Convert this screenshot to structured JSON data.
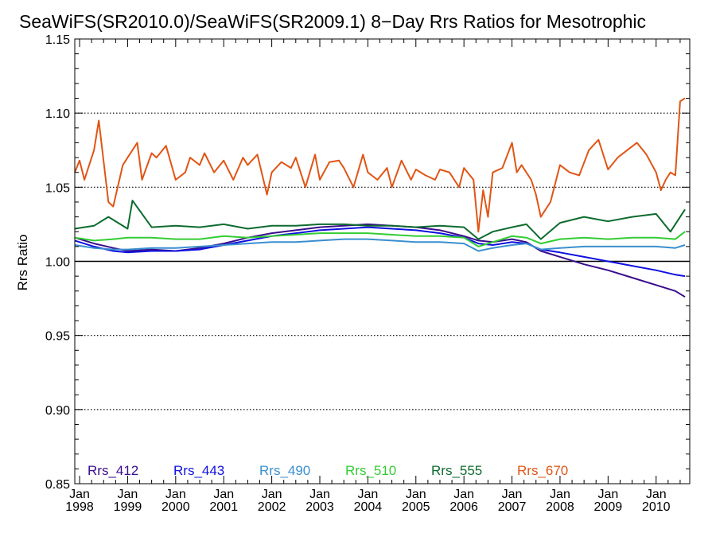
{
  "chart_data": {
    "type": "line",
    "title": "SeaWiFS(SR2010.0)/SeaWiFS(SR2009.1) 8−Day Rrs Ratios for Mesotrophic",
    "xlabel": "",
    "ylabel": "Rrs Ratio",
    "x_start": 1997.9,
    "x_end": 2010.7,
    "xlim": [
      1997.9,
      2010.7
    ],
    "ylim": [
      0.85,
      1.15
    ],
    "y_ticks": [
      "0.85",
      "0.90",
      "0.95",
      "1.00",
      "1.05",
      "1.10",
      "1.15"
    ],
    "y_tick_values": [
      0.85,
      0.9,
      0.95,
      1.0,
      1.05,
      1.1,
      1.15
    ],
    "gridlines_dotted": [
      0.9,
      0.95,
      1.05,
      1.1
    ],
    "reference_line": 1.0,
    "x_ticks": [
      {
        "top": "Jan",
        "bottom": "1998",
        "value": 1998
      },
      {
        "top": "Jan",
        "bottom": "1999",
        "value": 1999
      },
      {
        "top": "Jan",
        "bottom": "2000",
        "value": 2000
      },
      {
        "top": "Jan",
        "bottom": "2001",
        "value": 2001
      },
      {
        "top": "Jan",
        "bottom": "2002",
        "value": 2002
      },
      {
        "top": "Jan",
        "bottom": "2003",
        "value": 2003
      },
      {
        "top": "Jan",
        "bottom": "2004",
        "value": 2004
      },
      {
        "top": "Jan",
        "bottom": "2005",
        "value": 2005
      },
      {
        "top": "Jan",
        "bottom": "2006",
        "value": 2006
      },
      {
        "top": "Jan",
        "bottom": "2007",
        "value": 2007
      },
      {
        "top": "Jan",
        "bottom": "2008",
        "value": 2008
      },
      {
        "top": "Jan",
        "bottom": "2009",
        "value": 2009
      },
      {
        "top": "Jan",
        "bottom": "2010",
        "value": 2010
      }
    ],
    "legend_position": "bottom",
    "series": [
      {
        "name": "Rrs_412",
        "color": "#3a0d8c",
        "x": [
          1997.9,
          1998.3,
          1998.7,
          1999.0,
          1999.5,
          2000.0,
          2000.5,
          2001.0,
          2001.5,
          2002.0,
          2002.5,
          2003.0,
          2003.5,
          2004.0,
          2004.5,
          2005.0,
          2005.5,
          2006.0,
          2006.3,
          2006.6,
          2007.0,
          2007.3,
          2007.6,
          2008.0,
          2008.5,
          2009.0,
          2009.5,
          2010.0,
          2010.4,
          2010.6
        ],
        "y": [
          1.016,
          1.012,
          1.009,
          1.007,
          1.008,
          1.007,
          1.009,
          1.012,
          1.016,
          1.019,
          1.021,
          1.023,
          1.024,
          1.025,
          1.024,
          1.023,
          1.021,
          1.017,
          1.014,
          1.013,
          1.015,
          1.013,
          1.007,
          1.003,
          0.998,
          0.994,
          0.989,
          0.984,
          0.98,
          0.976
        ]
      },
      {
        "name": "Rrs_443",
        "color": "#1010e0",
        "x": [
          1997.9,
          1998.3,
          1998.7,
          1999.0,
          1999.5,
          2000.0,
          2000.5,
          2001.0,
          2001.5,
          2002.0,
          2002.5,
          2003.0,
          2003.5,
          2004.0,
          2004.5,
          2005.0,
          2005.5,
          2006.0,
          2006.3,
          2006.6,
          2007.0,
          2007.3,
          2007.6,
          2008.0,
          2008.5,
          2009.0,
          2009.5,
          2010.0,
          2010.4,
          2010.6
        ],
        "y": [
          1.014,
          1.01,
          1.007,
          1.006,
          1.007,
          1.007,
          1.008,
          1.011,
          1.014,
          1.017,
          1.019,
          1.021,
          1.022,
          1.023,
          1.022,
          1.021,
          1.019,
          1.016,
          1.012,
          1.011,
          1.013,
          1.012,
          1.008,
          1.006,
          1.003,
          1.0,
          0.997,
          0.994,
          0.991,
          0.99
        ]
      },
      {
        "name": "Rrs_490",
        "color": "#3a8fd0",
        "x": [
          1997.9,
          1998.3,
          1998.7,
          1999.0,
          1999.5,
          2000.0,
          2000.5,
          2001.0,
          2001.5,
          2002.0,
          2002.5,
          2003.0,
          2003.5,
          2004.0,
          2004.5,
          2005.0,
          2005.5,
          2006.0,
          2006.3,
          2006.6,
          2007.0,
          2007.3,
          2007.6,
          2008.0,
          2008.5,
          2009.0,
          2009.5,
          2010.0,
          2010.4,
          2010.6
        ],
        "y": [
          1.011,
          1.009,
          1.008,
          1.008,
          1.009,
          1.009,
          1.01,
          1.011,
          1.012,
          1.013,
          1.013,
          1.014,
          1.015,
          1.015,
          1.014,
          1.013,
          1.013,
          1.012,
          1.007,
          1.009,
          1.011,
          1.012,
          1.008,
          1.009,
          1.01,
          1.01,
          1.01,
          1.01,
          1.009,
          1.011
        ]
      },
      {
        "name": "Rrs_510",
        "color": "#33cc33",
        "x": [
          1997.9,
          1998.3,
          1998.7,
          1999.0,
          1999.5,
          2000.0,
          2000.5,
          2001.0,
          2001.5,
          2002.0,
          2002.5,
          2003.0,
          2003.5,
          2004.0,
          2004.5,
          2005.0,
          2005.5,
          2006.0,
          2006.3,
          2006.6,
          2007.0,
          2007.3,
          2007.6,
          2008.0,
          2008.5,
          2009.0,
          2009.5,
          2010.0,
          2010.4,
          2010.6
        ],
        "y": [
          1.016,
          1.014,
          1.015,
          1.016,
          1.016,
          1.015,
          1.015,
          1.017,
          1.016,
          1.017,
          1.018,
          1.019,
          1.019,
          1.019,
          1.018,
          1.017,
          1.017,
          1.016,
          1.01,
          1.013,
          1.017,
          1.016,
          1.012,
          1.015,
          1.016,
          1.015,
          1.016,
          1.016,
          1.015,
          1.02
        ]
      },
      {
        "name": "Rrs_555",
        "color": "#0d6b2e",
        "x": [
          1997.9,
          1998.3,
          1998.6,
          1999.0,
          1999.1,
          1999.5,
          2000.0,
          2000.5,
          2001.0,
          2001.5,
          2002.0,
          2002.5,
          2003.0,
          2003.5,
          2004.0,
          2004.5,
          2005.0,
          2005.5,
          2006.0,
          2006.3,
          2006.6,
          2007.0,
          2007.3,
          2007.6,
          2008.0,
          2008.5,
          2009.0,
          2009.5,
          2010.0,
          2010.3,
          2010.6
        ],
        "y": [
          1.022,
          1.024,
          1.03,
          1.022,
          1.041,
          1.023,
          1.024,
          1.023,
          1.025,
          1.022,
          1.024,
          1.024,
          1.025,
          1.025,
          1.024,
          1.024,
          1.023,
          1.024,
          1.023,
          1.015,
          1.02,
          1.023,
          1.025,
          1.015,
          1.026,
          1.03,
          1.027,
          1.03,
          1.032,
          1.02,
          1.035
        ]
      },
      {
        "name": "Rrs_670",
        "color": "#e05515",
        "x": [
          1997.9,
          1998.0,
          1998.1,
          1998.3,
          1998.4,
          1998.6,
          1998.7,
          1998.9,
          1999.0,
          1999.2,
          1999.3,
          1999.5,
          1999.6,
          1999.8,
          2000.0,
          2000.2,
          2000.3,
          2000.5,
          2000.6,
          2000.8,
          2001.0,
          2001.2,
          2001.4,
          2001.5,
          2001.7,
          2001.9,
          2002.0,
          2002.2,
          2002.4,
          2002.5,
          2002.7,
          2002.9,
          2003.0,
          2003.2,
          2003.4,
          2003.5,
          2003.7,
          2003.9,
          2004.0,
          2004.2,
          2004.4,
          2004.5,
          2004.7,
          2004.9,
          2005.0,
          2005.2,
          2005.4,
          2005.5,
          2005.7,
          2005.9,
          2006.0,
          2006.2,
          2006.3,
          2006.4,
          2006.5,
          2006.6,
          2006.8,
          2007.0,
          2007.1,
          2007.2,
          2007.4,
          2007.5,
          2007.6,
          2007.8,
          2008.0,
          2008.2,
          2008.4,
          2008.6,
          2008.8,
          2009.0,
          2009.2,
          2009.4,
          2009.6,
          2009.8,
          2010.0,
          2010.1,
          2010.2,
          2010.3,
          2010.4,
          2010.5,
          2010.6
        ],
        "y": [
          1.06,
          1.068,
          1.055,
          1.075,
          1.095,
          1.04,
          1.037,
          1.065,
          1.07,
          1.08,
          1.055,
          1.073,
          1.07,
          1.078,
          1.055,
          1.06,
          1.07,
          1.065,
          1.073,
          1.06,
          1.068,
          1.055,
          1.07,
          1.065,
          1.072,
          1.045,
          1.06,
          1.067,
          1.063,
          1.07,
          1.05,
          1.072,
          1.055,
          1.067,
          1.068,
          1.063,
          1.05,
          1.072,
          1.06,
          1.055,
          1.063,
          1.05,
          1.068,
          1.055,
          1.062,
          1.058,
          1.055,
          1.062,
          1.06,
          1.05,
          1.063,
          1.055,
          1.02,
          1.048,
          1.03,
          1.06,
          1.063,
          1.08,
          1.06,
          1.065,
          1.055,
          1.045,
          1.03,
          1.04,
          1.065,
          1.06,
          1.058,
          1.075,
          1.082,
          1.062,
          1.07,
          1.075,
          1.08,
          1.072,
          1.06,
          1.048,
          1.055,
          1.06,
          1.058,
          1.108,
          1.11
        ]
      }
    ]
  }
}
